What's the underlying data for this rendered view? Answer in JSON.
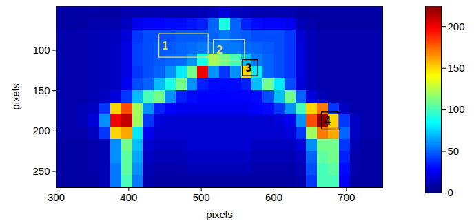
{
  "chart_data": {
    "type": "heatmap",
    "xlabel": "pixels",
    "ylabel": "pixels",
    "xlim": [
      300,
      750
    ],
    "ylim": [
      45,
      270
    ],
    "xticks": [
      300,
      400,
      500,
      600,
      700
    ],
    "yticks": [
      100,
      150,
      200,
      250
    ],
    "x_bins": [
      300,
      315,
      330,
      345,
      360,
      375,
      390,
      405,
      420,
      435,
      450,
      465,
      480,
      495,
      510,
      525,
      540,
      555,
      570,
      585,
      600,
      615,
      630,
      645,
      660,
      675,
      690,
      705,
      720,
      735,
      750
    ],
    "y_bins": [
      45,
      60,
      75,
      90,
      105,
      120,
      135,
      150,
      165,
      180,
      195,
      210,
      225,
      240,
      255,
      270
    ],
    "cells": [
      [
        8,
        8,
        8,
        8,
        8,
        8,
        10,
        10,
        10,
        10,
        10,
        10,
        10,
        12,
        15,
        20,
        15,
        12,
        10,
        10,
        10,
        10,
        8,
        8,
        8,
        8,
        8,
        8,
        8,
        8
      ],
      [
        8,
        8,
        8,
        10,
        10,
        10,
        15,
        25,
        28,
        28,
        30,
        30,
        32,
        35,
        50,
        90,
        50,
        35,
        30,
        28,
        28,
        25,
        12,
        10,
        8,
        8,
        8,
        8,
        8,
        8
      ],
      [
        10,
        10,
        10,
        12,
        12,
        14,
        20,
        40,
        45,
        45,
        45,
        48,
        48,
        48,
        50,
        55,
        50,
        48,
        45,
        45,
        45,
        40,
        18,
        12,
        10,
        10,
        10,
        10,
        10,
        10
      ],
      [
        10,
        10,
        10,
        12,
        12,
        15,
        22,
        42,
        45,
        48,
        48,
        50,
        52,
        55,
        55,
        55,
        55,
        52,
        50,
        48,
        45,
        40,
        20,
        12,
        10,
        10,
        10,
        10,
        10,
        10
      ],
      [
        10,
        10,
        10,
        12,
        12,
        15,
        22,
        42,
        45,
        48,
        50,
        52,
        60,
        90,
        120,
        110,
        100,
        70,
        55,
        50,
        45,
        40,
        20,
        12,
        10,
        10,
        10,
        10,
        10,
        10
      ],
      [
        10,
        10,
        10,
        12,
        12,
        15,
        22,
        40,
        45,
        50,
        60,
        80,
        110,
        200,
        60,
        40,
        60,
        150,
        80,
        50,
        45,
        40,
        20,
        12,
        10,
        10,
        10,
        10,
        10,
        10
      ],
      [
        10,
        10,
        10,
        12,
        12,
        15,
        25,
        45,
        50,
        70,
        90,
        110,
        60,
        35,
        30,
        30,
        30,
        35,
        70,
        110,
        80,
        45,
        20,
        12,
        10,
        10,
        10,
        10,
        10,
        10
      ],
      [
        10,
        10,
        10,
        12,
        15,
        20,
        40,
        70,
        100,
        110,
        60,
        35,
        30,
        28,
        28,
        28,
        28,
        28,
        30,
        45,
        70,
        110,
        50,
        20,
        12,
        10,
        10,
        10,
        10,
        10
      ],
      [
        10,
        10,
        12,
        15,
        40,
        150,
        180,
        120,
        60,
        35,
        28,
        25,
        25,
        25,
        25,
        25,
        25,
        25,
        28,
        30,
        40,
        60,
        100,
        150,
        170,
        40,
        15,
        10,
        10,
        10
      ],
      [
        10,
        10,
        12,
        20,
        60,
        200,
        210,
        120,
        40,
        20,
        18,
        18,
        18,
        18,
        18,
        18,
        18,
        18,
        18,
        18,
        20,
        25,
        60,
        180,
        220,
        150,
        40,
        15,
        10,
        10
      ],
      [
        10,
        10,
        10,
        15,
        40,
        150,
        160,
        80,
        25,
        18,
        18,
        18,
        18,
        18,
        18,
        18,
        18,
        18,
        18,
        18,
        18,
        20,
        40,
        120,
        170,
        160,
        50,
        15,
        10,
        10
      ],
      [
        8,
        8,
        8,
        10,
        12,
        60,
        110,
        70,
        18,
        15,
        15,
        15,
        18,
        18,
        18,
        18,
        18,
        18,
        15,
        15,
        15,
        15,
        20,
        60,
        110,
        110,
        40,
        12,
        8,
        8
      ],
      [
        8,
        8,
        8,
        10,
        12,
        60,
        105,
        65,
        15,
        12,
        12,
        12,
        15,
        15,
        15,
        15,
        15,
        15,
        12,
        12,
        12,
        12,
        15,
        50,
        105,
        110,
        35,
        10,
        8,
        8
      ],
      [
        8,
        8,
        8,
        10,
        12,
        55,
        105,
        60,
        12,
        10,
        10,
        10,
        12,
        12,
        12,
        12,
        12,
        12,
        10,
        10,
        10,
        10,
        12,
        45,
        100,
        105,
        30,
        10,
        8,
        8
      ],
      [
        8,
        8,
        8,
        8,
        12,
        55,
        100,
        55,
        10,
        8,
        8,
        8,
        8,
        8,
        8,
        8,
        8,
        8,
        8,
        8,
        8,
        8,
        10,
        40,
        100,
        100,
        25,
        8,
        8,
        8
      ]
    ],
    "color_range": [
      0,
      225
    ],
    "color_ticks": [
      0,
      50,
      100,
      150,
      200
    ],
    "annotations": [
      {
        "label": "1",
        "x": [
          442,
          510
        ],
        "y": [
          80,
          109
        ],
        "color": "#e8d84a"
      },
      {
        "label": "2",
        "x": [
          517,
          560
        ],
        "y": [
          87,
          113
        ],
        "color": "#e8d84a"
      },
      {
        "label": "3",
        "x": [
          557,
          578
        ],
        "y": [
          112,
          132
        ],
        "color": "#000000"
      },
      {
        "label": "4",
        "x": [
          666,
          689
        ],
        "y": [
          177,
          198
        ],
        "color": "#000000"
      }
    ]
  }
}
